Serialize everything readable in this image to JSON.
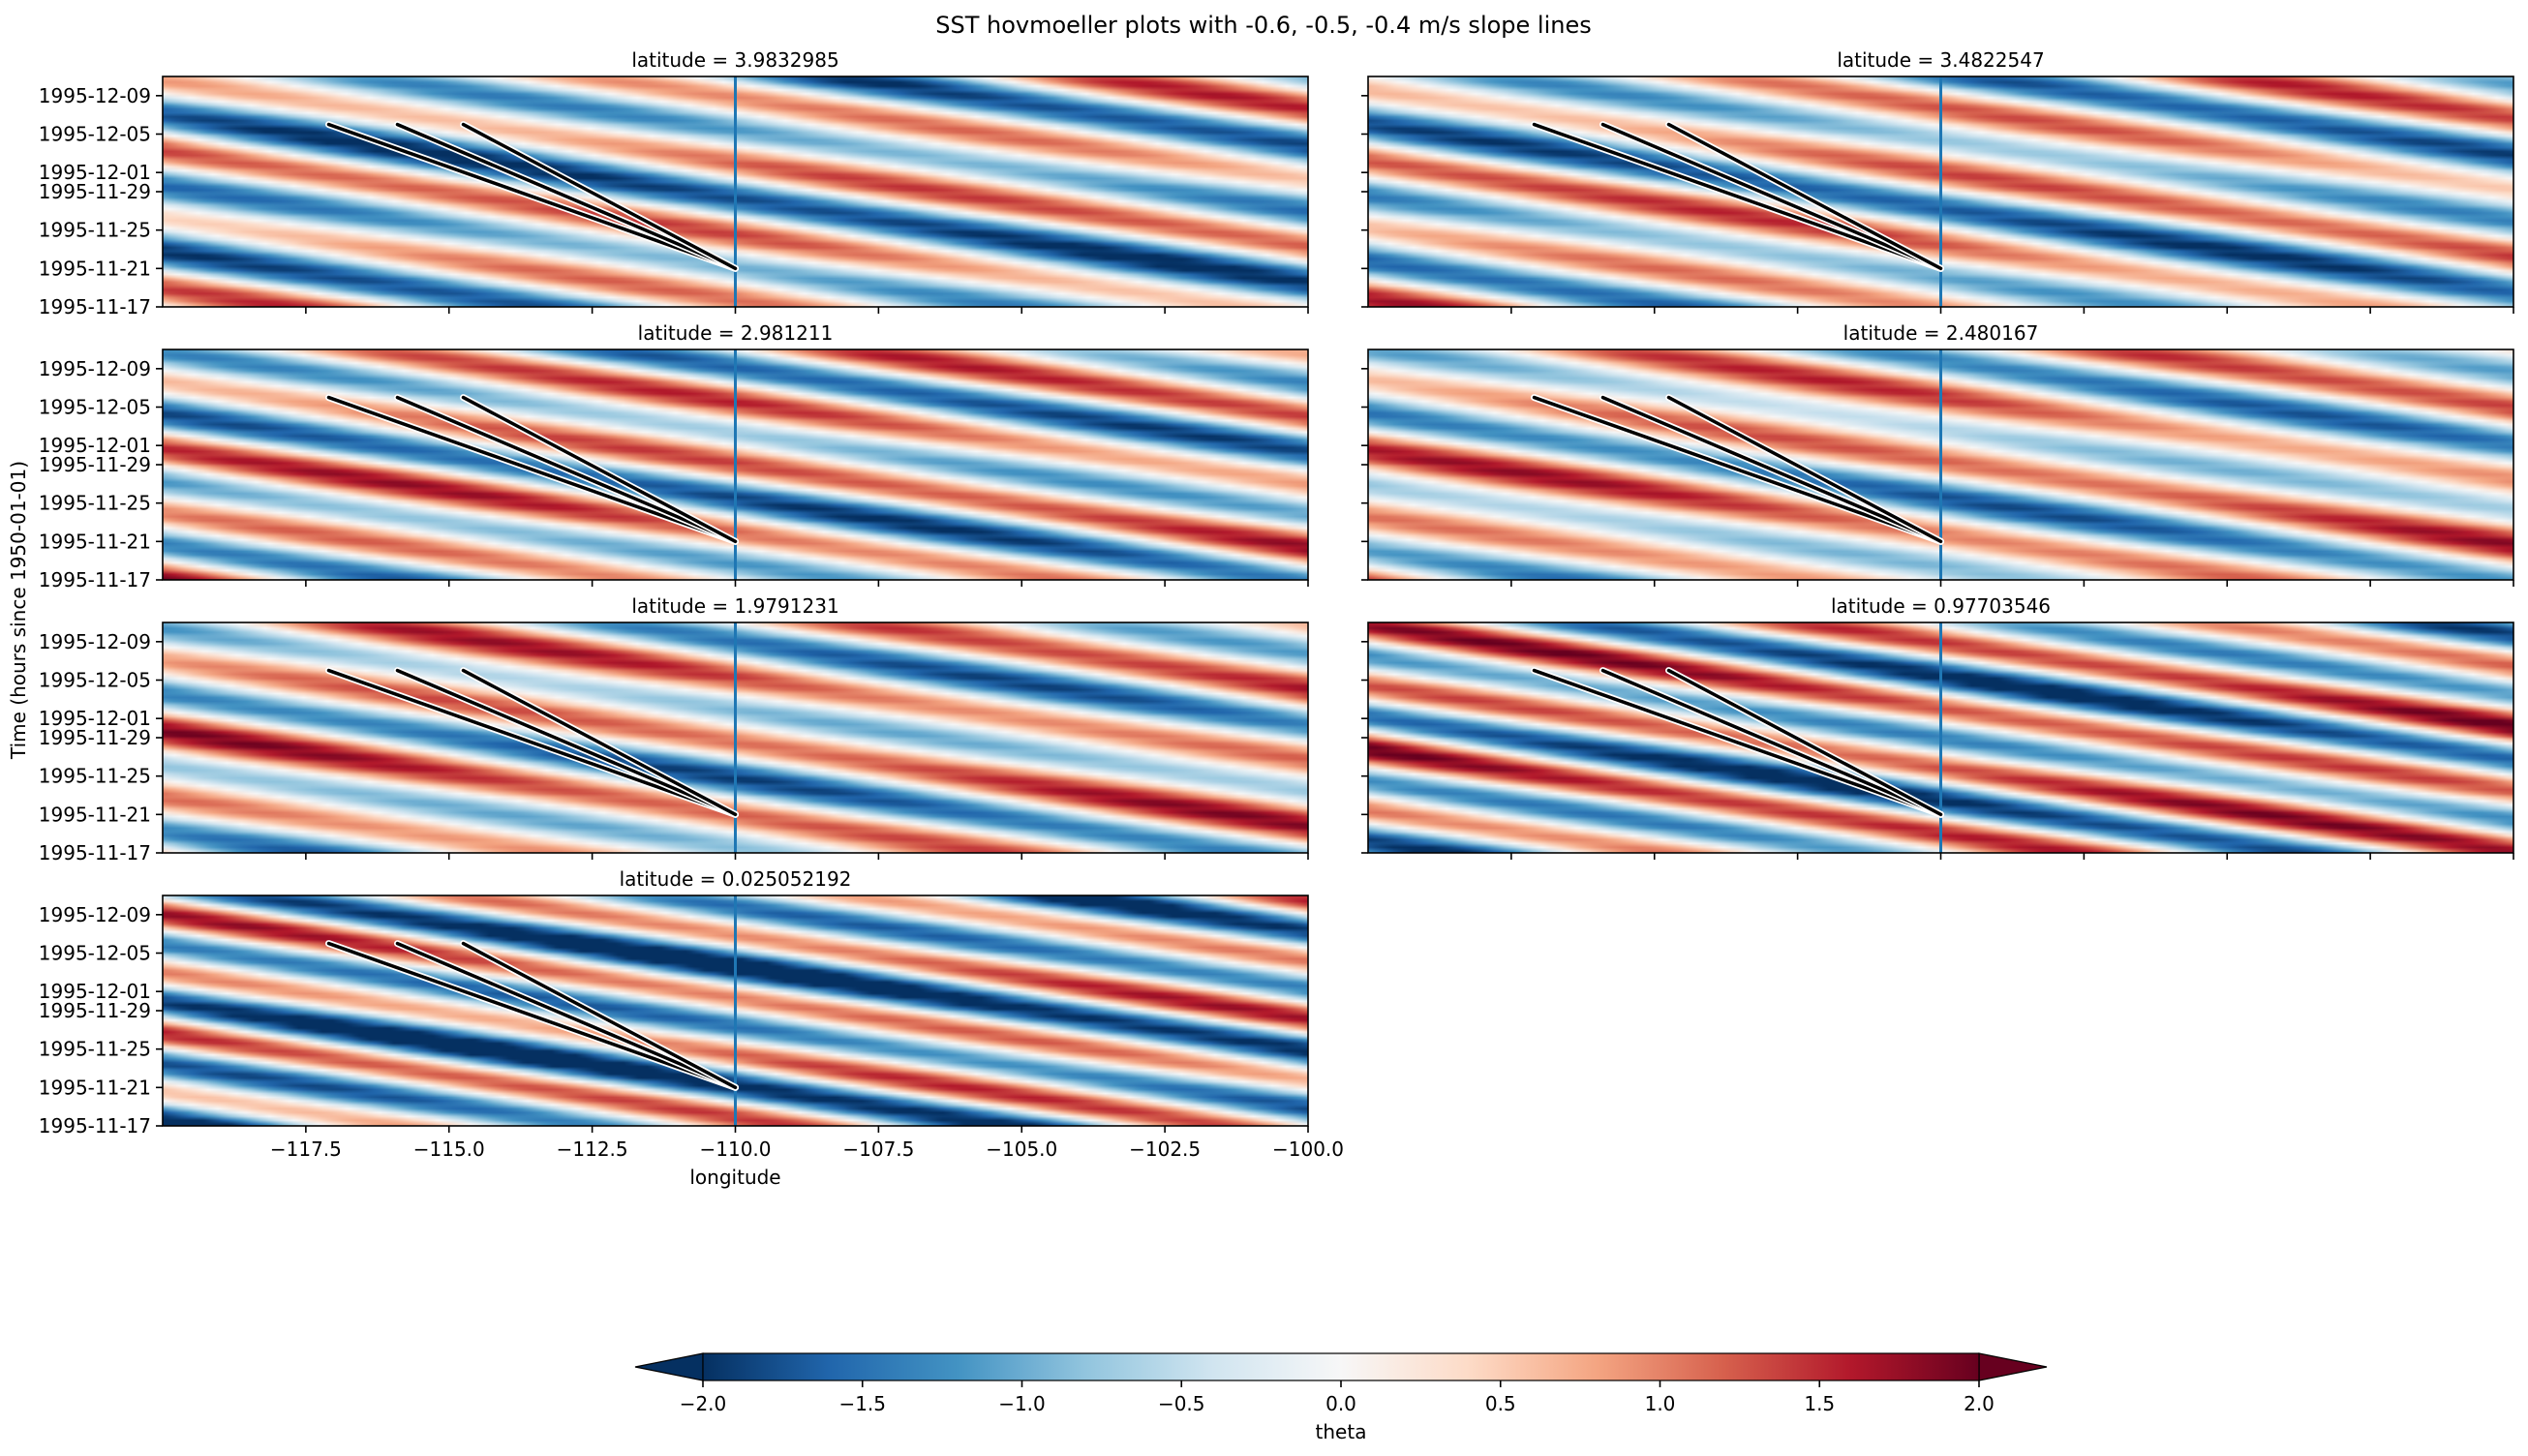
{
  "figure": {
    "title": "SST hovmoeller plots with -0.6, -0.5, -0.4 m/s slope lines"
  },
  "chart_data": {
    "type": "heatmap",
    "title": "SST hovmoeller plots with -0.6, -0.5, -0.4 m/s slope lines",
    "xlabel": "longitude",
    "ylabel": "Time (hours since 1950-01-01)",
    "xlim": [
      -120.0,
      -100.0
    ],
    "x_ticks": [
      -117.5,
      -115.0,
      -112.5,
      -110.0,
      -107.5,
      -105.0,
      -102.5,
      -100.0
    ],
    "x_tick_labels": [
      "−117.5",
      "−115.0",
      "−112.5",
      "−110.0",
      "−107.5",
      "−105.0",
      "−102.5",
      "−100.0"
    ],
    "ylim": [
      "1995-11-17",
      "1995-12-11"
    ],
    "y_ticks": [
      "1995-11-17",
      "1995-11-21",
      "1995-11-25",
      "1995-11-29",
      "1995-12-01",
      "1995-12-05",
      "1995-12-09"
    ],
    "reference_longitude": -110.0,
    "slope_lines": {
      "speeds_m_per_s": [
        -0.6,
        -0.5,
        -0.4
      ],
      "origin": {
        "longitude": -110.0,
        "time": "1995-11-21"
      },
      "end_time": "1995-12-06",
      "end_longitudes": [
        -117.1,
        -115.9,
        -114.75
      ]
    },
    "colorbar": {
      "label": "theta",
      "colormap": "RdBu_r",
      "vmin": -2.0,
      "vmax": 2.0,
      "extend": "both",
      "ticks": [
        -2.0,
        -1.5,
        -1.0,
        -0.5,
        0.0,
        0.5,
        1.0,
        1.5,
        2.0
      ],
      "tick_labels": [
        "−2.0",
        "−1.5",
        "−1.0",
        "−0.5",
        "0.0",
        "0.5",
        "1.0",
        "1.5",
        "2.0"
      ]
    },
    "panels": [
      {
        "latitude_label": "latitude = 3.9832985",
        "show_ylabels": true,
        "show_xlabels": false
      },
      {
        "latitude_label": "latitude = 3.4822547",
        "show_ylabels": false,
        "show_xlabels": false
      },
      {
        "latitude_label": "latitude = 2.981211",
        "show_ylabels": true,
        "show_xlabels": false
      },
      {
        "latitude_label": "latitude = 2.480167",
        "show_ylabels": false,
        "show_xlabels": false
      },
      {
        "latitude_label": "latitude = 1.9791231",
        "show_ylabels": true,
        "show_xlabels": false
      },
      {
        "latitude_label": "latitude = 0.97703546",
        "show_ylabels": false,
        "show_xlabels": false
      },
      {
        "latitude_label": "latitude = 0.025052192",
        "show_ylabels": true,
        "show_xlabels": true
      }
    ]
  }
}
